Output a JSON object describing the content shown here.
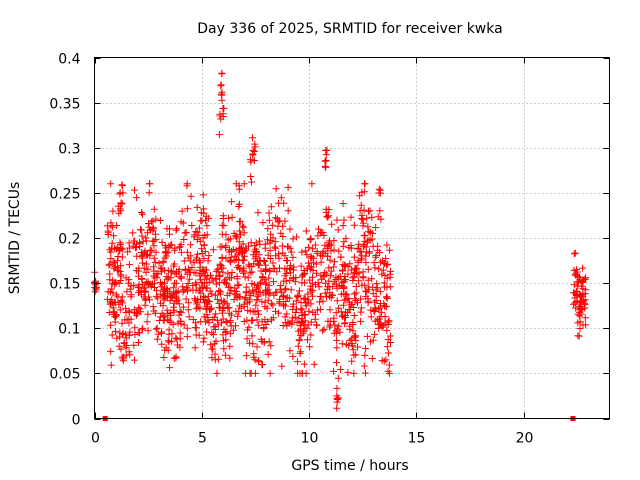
{
  "chart_data": {
    "type": "scatter",
    "title": "Day 336 of 2025, SRMTID for receiver kwka",
    "xlabel": "GPS time / hours",
    "ylabel": "SRMTID / TECUs",
    "xlim": [
      0,
      24
    ],
    "ylim": [
      0,
      0.4
    ],
    "xticks": [
      0,
      5,
      10,
      15,
      20
    ],
    "yticks": [
      0,
      0.05,
      0.1,
      0.15,
      0.2,
      0.25,
      0.3,
      0.35,
      0.4
    ],
    "grid": true,
    "marker": "plus",
    "color": "#ff0000",
    "segments": [
      {
        "x_start": 0.0,
        "x_end": 0.1,
        "y_min": 0.13,
        "y_max": 0.16,
        "spikes": []
      },
      {
        "x_start": 0.6,
        "x_end": 13.8,
        "y_min": 0.06,
        "y_max": 0.24,
        "spikes": [
          [
            1.3,
            0.263
          ],
          [
            1.2,
            0.26
          ],
          [
            5.9,
            0.383
          ],
          [
            5.95,
            0.37
          ],
          [
            6.0,
            0.35
          ],
          [
            5.85,
            0.34
          ],
          [
            7.4,
            0.317
          ],
          [
            7.45,
            0.31
          ],
          [
            7.3,
            0.29
          ],
          [
            10.8,
            0.3
          ],
          [
            10.75,
            0.29
          ],
          [
            11.3,
            0.04
          ],
          [
            11.35,
            0.05
          ],
          [
            13.3,
            0.258
          ],
          [
            3.5,
            0.215
          ],
          [
            12.6,
            0.08
          ]
        ]
      },
      {
        "x_start": 22.3,
        "x_end": 22.9,
        "y_min": 0.09,
        "y_max": 0.17,
        "spikes": [
          [
            22.4,
            0.188
          ]
        ]
      }
    ],
    "zero_markers": [
      {
        "x": 0.5,
        "y": 0
      },
      {
        "x": 22.3,
        "y": 0
      }
    ]
  }
}
